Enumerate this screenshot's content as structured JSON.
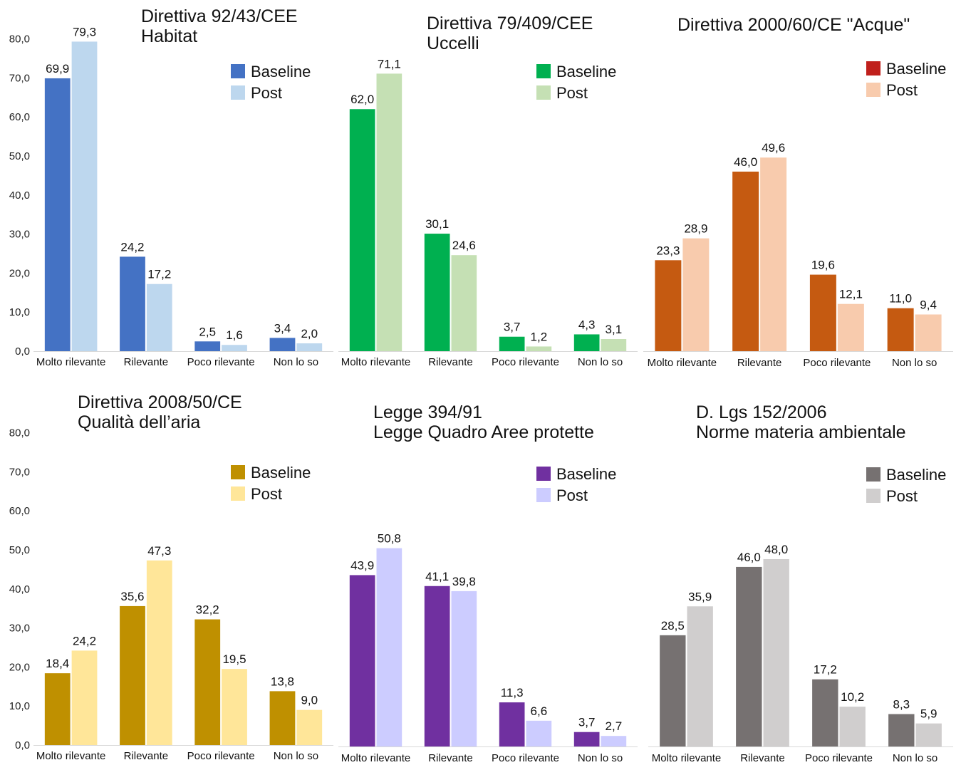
{
  "chart_data": [
    {
      "type": "bar",
      "title": "Direttiva 92/43/CEE",
      "subtitle": "Habitat",
      "categories": [
        "Molto rilevante",
        "Rilevante",
        "Poco rilevante",
        "Non lo so"
      ],
      "series": [
        {
          "name": "Baseline",
          "color": "#4472C4",
          "values": [
            69.9,
            24.2,
            2.5,
            3.4
          ],
          "labels": [
            "69,9",
            "24,2",
            "2,5",
            "3,4"
          ]
        },
        {
          "name": "Post",
          "color": "#BDD7EE",
          "values": [
            79.3,
            17.2,
            1.6,
            2.0
          ],
          "labels": [
            "79,3",
            "17,2",
            "1,6",
            "2,0"
          ]
        }
      ],
      "ylim": [
        0,
        80
      ],
      "yticks": [
        "0,0",
        "10,0",
        "20,0",
        "30,0",
        "40,0",
        "50,0",
        "60,0",
        "70,0",
        "80,0"
      ],
      "legend": "top-right"
    },
    {
      "type": "bar",
      "title": "Direttiva 79/409/CEE",
      "subtitle": "Uccelli",
      "categories": [
        "Molto rilevante",
        "Rilevante",
        "Poco rilevante",
        "Non lo so"
      ],
      "series": [
        {
          "name": "Baseline",
          "color": "#00B050",
          "values": [
            62.0,
            30.1,
            3.7,
            4.3
          ],
          "labels": [
            "62,0",
            "30,1",
            "3,7",
            "4,3"
          ]
        },
        {
          "name": "Post",
          "color": "#C5E0B4",
          "values": [
            71.1,
            24.6,
            1.2,
            3.1
          ],
          "labels": [
            "71,1",
            "24,6",
            "1,2",
            "3,1"
          ]
        }
      ],
      "ylim": [
        0,
        80
      ],
      "legend": "top-right"
    },
    {
      "type": "bar",
      "title": "Direttiva 2000/60/CE \"Acque\"",
      "subtitle": "",
      "categories": [
        "Molto rilevante",
        "Rilevante",
        "Poco rilevante",
        "Non lo so"
      ],
      "series": [
        {
          "name": "Baseline",
          "color": "#C55A11",
          "legend_color": "#C0201C",
          "values": [
            23.3,
            46.0,
            19.6,
            11.0
          ],
          "labels": [
            "23,3",
            "46,0",
            "19,6",
            "11,0"
          ]
        },
        {
          "name": "Post",
          "color": "#F8CBAD",
          "values": [
            28.9,
            49.6,
            12.1,
            9.4
          ],
          "labels": [
            "28,9",
            "49,6",
            "12,1",
            "9,4"
          ]
        }
      ],
      "ylim": [
        0,
        80
      ],
      "legend": "top-right"
    },
    {
      "type": "bar",
      "title": "Direttiva 2008/50/CE",
      "subtitle": "Qualità dell’aria",
      "categories": [
        "Molto rilevante",
        "Rilevante",
        "Poco rilevante",
        "Non lo so"
      ],
      "series": [
        {
          "name": "Baseline",
          "color": "#BF9000",
          "values": [
            18.4,
            35.6,
            32.2,
            13.8
          ],
          "labels": [
            "18,4",
            "35,6",
            "32,2",
            "13,8"
          ]
        },
        {
          "name": "Post",
          "color": "#FFE699",
          "values": [
            24.2,
            47.3,
            19.5,
            9.0
          ],
          "labels": [
            "24,2",
            "47,3",
            "19,5",
            "9,0"
          ]
        }
      ],
      "ylim": [
        0,
        80
      ],
      "yticks": [
        "0,0",
        "10,0",
        "20,0",
        "30,0",
        "40,0",
        "50,0",
        "60,0",
        "70,0",
        "80,0"
      ],
      "legend": "top-right"
    },
    {
      "type": "bar",
      "title": "Legge 394/91",
      "subtitle": "Legge Quadro Aree protette",
      "categories": [
        "Molto rilevante",
        "Rilevante",
        "Poco rilevante",
        "Non lo so"
      ],
      "series": [
        {
          "name": "Baseline",
          "color": "#7030A0",
          "values": [
            43.9,
            41.1,
            11.3,
            3.7
          ],
          "labels": [
            "43,9",
            "41,1",
            "11,3",
            "3,7"
          ]
        },
        {
          "name": "Post",
          "color": "#CCCCFF",
          "values": [
            50.8,
            39.8,
            6.6,
            2.7
          ],
          "labels": [
            "50,8",
            "39,8",
            "6,6",
            "2,7"
          ]
        }
      ],
      "ylim": [
        0,
        80
      ],
      "legend": "top-right"
    },
    {
      "type": "bar",
      "title": "D. Lgs 152/2006",
      "subtitle": "Norme materia ambientale",
      "categories": [
        "Molto rilevante",
        "Rilevante",
        "Poco rilevante",
        "Non lo so"
      ],
      "series": [
        {
          "name": "Baseline",
          "color": "#767171",
          "values": [
            28.5,
            46.0,
            17.2,
            8.3
          ],
          "labels": [
            "28,5",
            "46,0",
            "17,2",
            "8,3"
          ]
        },
        {
          "name": "Post",
          "color": "#D0CECE",
          "values": [
            35.9,
            48.0,
            10.2,
            5.9
          ],
          "labels": [
            "35,9",
            "48,0",
            "10,2",
            "5,9"
          ]
        }
      ],
      "ylim": [
        0,
        80
      ],
      "legend": "top-right"
    }
  ]
}
